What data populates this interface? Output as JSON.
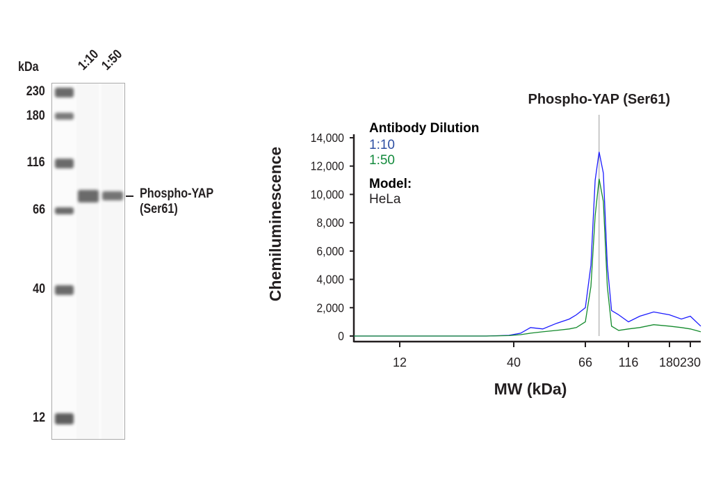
{
  "blot": {
    "unit_label": "kDa",
    "lanes": [
      "1:10",
      "1:50"
    ],
    "markers": [
      "230",
      "180",
      "116",
      "66",
      "40",
      "12"
    ],
    "band_label_line1": "Phospho-YAP",
    "band_label_line2": "(Ser61)"
  },
  "chart_data": {
    "type": "line",
    "title": "Phospho-YAP (Ser61)",
    "xlabel": "MW (kDa)",
    "ylabel": "Chemiluminescence",
    "x_scale": "log-like (nonlinear MW)",
    "xticks": [
      12,
      40,
      66,
      116,
      180,
      230
    ],
    "xtick_labels": [
      "12",
      "40",
      "66",
      "116",
      "180",
      "230"
    ],
    "yticks": [
      0,
      2000,
      4000,
      6000,
      8000,
      10000,
      12000,
      14000
    ],
    "ytick_labels": [
      "0",
      "2,000",
      "4,000",
      "6,000",
      "8,000",
      "10,000",
      "12,000",
      "14,000"
    ],
    "ylim": [
      0,
      14000
    ],
    "xlim": [
      7.4,
      260
    ],
    "grid": false,
    "marker_line_x": 79,
    "legend": {
      "title": "Antibody Dilution",
      "model_title": "Model:",
      "model_value": "HeLa"
    },
    "x": [
      7.4,
      12,
      20,
      30,
      38,
      42,
      45,
      49,
      54,
      59,
      62,
      66,
      71,
      75,
      79,
      83.5,
      88,
      93,
      102,
      116,
      131,
      152,
      180,
      207,
      230,
      260
    ],
    "series": [
      {
        "name": "1:10",
        "color": "#1a1aff",
        "values": [
          0,
          0,
          0,
          0,
          50,
          200,
          600,
          500,
          900,
          1200,
          1500,
          2000,
          5000,
          11000,
          13000,
          11500,
          5000,
          1800,
          1500,
          1000,
          1400,
          1700,
          1500,
          1200,
          1400,
          700
        ]
      },
      {
        "name": "1:50",
        "color": "#138a2c",
        "values": [
          0,
          0,
          0,
          0,
          30,
          100,
          200,
          300,
          400,
          500,
          600,
          1000,
          3500,
          8500,
          11100,
          9500,
          3500,
          700,
          400,
          500,
          600,
          800,
          700,
          600,
          500,
          300
        ]
      }
    ]
  }
}
